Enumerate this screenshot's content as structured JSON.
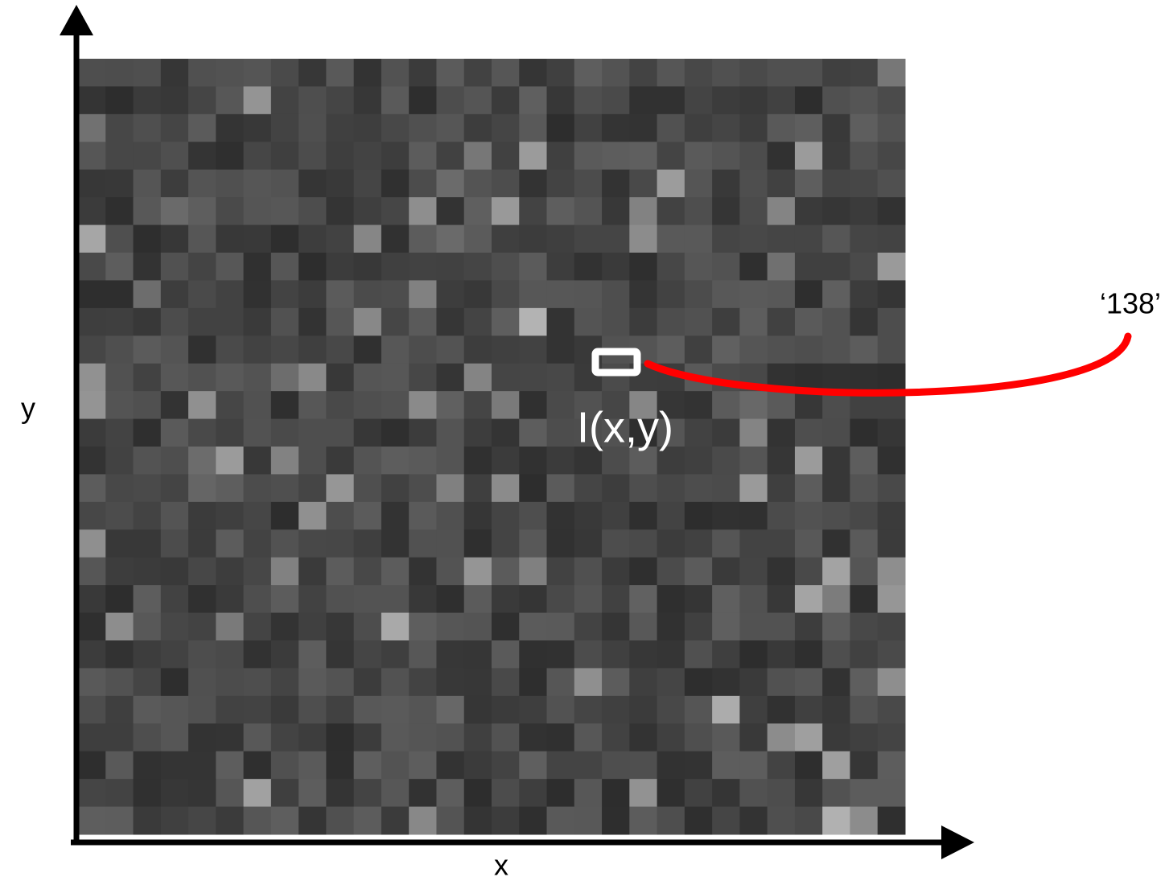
{
  "labels": {
    "y_axis": "y",
    "x_axis": "x",
    "pixel": "I(x,y)",
    "value": "‘138’"
  }
}
